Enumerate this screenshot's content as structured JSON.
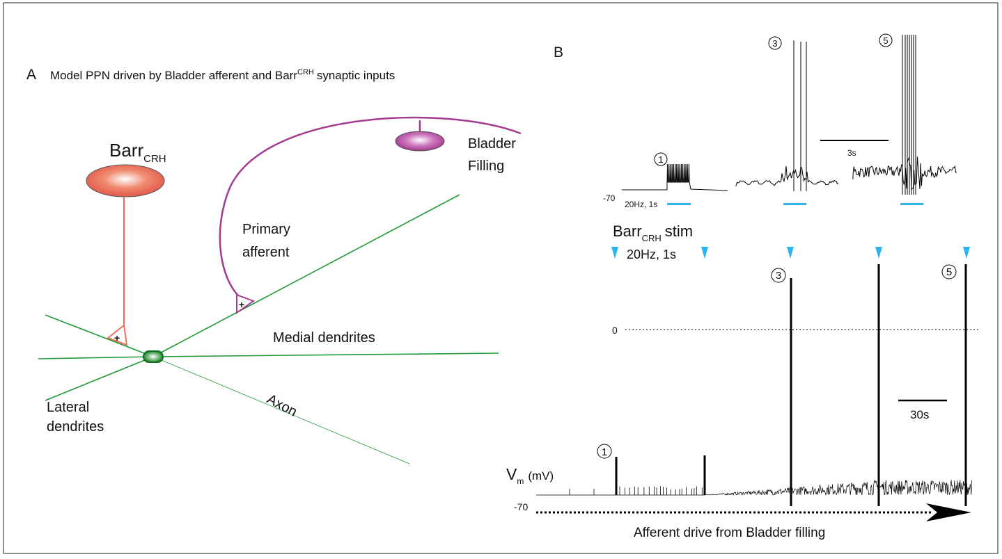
{
  "panel_a": {
    "label": "A",
    "title_pre": "Model PPN driven by Bladder afferent and Barr",
    "title_sup": "CRH",
    "title_post": "synaptic inputs",
    "barr": "Barr",
    "barr_sub": "CRH",
    "bladder_1": "Bladder",
    "bladder_2": "Filling",
    "primary_1": "Primary",
    "primary_2": "afferent",
    "medial": "Medial dendrites",
    "axon": "Axon",
    "lateral_1": "Lateral",
    "lateral_2": "dendrites",
    "plus": "+"
  },
  "panel_b": {
    "label": "B",
    "inset_minus70": "-70",
    "inset_stim": "20Hz, 1s",
    "inset_scale": "3s",
    "circle_1": "1",
    "circle_3": "3",
    "circle_5": "5",
    "stim_barr": "Barr",
    "stim_sub": "CRH",
    "stim_word": "stim",
    "stim_params": "20Hz, 1s",
    "zero": "0",
    "scale": "30s",
    "vm": "V",
    "vm_sub": "m",
    "vm_unit": "(mV)",
    "minus70": "-70",
    "drive": "Afferent drive from Bladder filling"
  }
}
